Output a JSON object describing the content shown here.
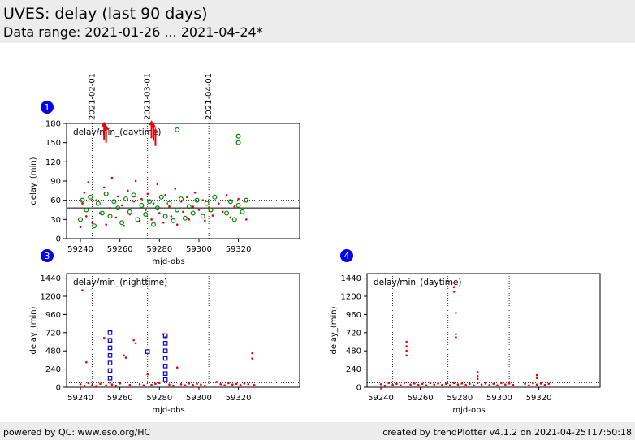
{
  "header": {
    "title": "UVES: delay (last 90 days)",
    "subtitle": "Data range: 2021-01-26 ... 2021-04-24*"
  },
  "footer": {
    "left": "powered by QC: www.eso.org/HC",
    "right": "created by trendPlotter v4.1.2 on 2021-04-25T17:50:18"
  },
  "colors": {
    "red": "#ee0000",
    "green": "#008800",
    "blue": "#0000ee",
    "badge": "#0000ee"
  },
  "chart_data": [
    {
      "id": 1,
      "badge": "1",
      "type": "scatter",
      "label": "delay/min_(daytime)",
      "xlabel": "mjd-obs",
      "ylabel": "delay_(min)",
      "xlim": [
        59233,
        59351
      ],
      "ylim": [
        0,
        180
      ],
      "xticks": [
        "59240",
        "59260",
        "59280",
        "59300",
        "59320"
      ],
      "yticks": [
        "0",
        "30",
        "60",
        "90",
        "120",
        "150",
        "180"
      ],
      "reference_lines": [
        {
          "type": "hline",
          "value": 48,
          "style": "solid"
        },
        {
          "type": "hline",
          "value": 60,
          "style": "dotted"
        }
      ],
      "date_markers": [
        {
          "label": "2021-02-01",
          "mjd": 59246
        },
        {
          "label": "2021-03-01",
          "mjd": 59274
        },
        {
          "label": "2021-04-01",
          "mjd": 59305
        }
      ],
      "series": [
        {
          "color": "red",
          "marker": "dot",
          "points": [
            [
              59240,
              18
            ],
            [
              59241,
              55
            ],
            [
              59242,
              72
            ],
            [
              59243,
              35
            ],
            [
              59244,
              88
            ],
            [
              59246,
              25
            ],
            [
              59248,
              60
            ],
            [
              59250,
              40
            ],
            [
              59252,
              80
            ],
            [
              59253,
              22
            ],
            [
              59255,
              48
            ],
            [
              59256,
              95
            ],
            [
              59258,
              33
            ],
            [
              59259,
              66
            ],
            [
              59261,
              52
            ],
            [
              59262,
              20
            ],
            [
              59264,
              75
            ],
            [
              59265,
              38
            ],
            [
              59267,
              58
            ],
            [
              59268,
              90
            ],
            [
              59270,
              28
            ],
            [
              59271,
              62
            ],
            [
              59273,
              45
            ],
            [
              59274,
              70
            ],
            [
              59276,
              30
            ],
            [
              59277,
              55
            ],
            [
              59279,
              85
            ],
            [
              59280,
              40
            ],
            [
              59282,
              25
            ],
            [
              59283,
              68
            ],
            [
              59285,
              50
            ],
            [
              59286,
              35
            ],
            [
              59288,
              78
            ],
            [
              59289,
              22
            ],
            [
              59291,
              58
            ],
            [
              59292,
              42
            ],
            [
              59294,
              65
            ],
            [
              59295,
              30
            ],
            [
              59297,
              50
            ],
            [
              59298,
              72
            ],
            [
              59300,
              45
            ],
            [
              59302,
              60
            ],
            [
              59303,
              28
            ],
            [
              59305,
              48
            ],
            [
              59307,
              36
            ],
            [
              59310,
              55
            ],
            [
              59312,
              42
            ],
            [
              59314,
              68
            ],
            [
              59316,
              33
            ],
            [
              59318,
              50
            ],
            [
              59320,
              62
            ],
            [
              59321,
              40
            ],
            [
              59323,
              58
            ],
            [
              59324,
              30
            ]
          ]
        },
        {
          "color": "red",
          "marker": "arrow",
          "points": [
            [
              59252,
              170
            ],
            [
              59253,
              165
            ],
            [
              59276,
              172
            ],
            [
              59277,
              168
            ],
            [
              59278,
              160
            ]
          ]
        },
        {
          "color": "green",
          "marker": "circle",
          "points": [
            [
              59240,
              30
            ],
            [
              59241,
              60
            ],
            [
              59243,
              45
            ],
            [
              59245,
              65
            ],
            [
              59247,
              20
            ],
            [
              59249,
              55
            ],
            [
              59251,
              40
            ],
            [
              59253,
              70
            ],
            [
              59255,
              35
            ],
            [
              59257,
              58
            ],
            [
              59259,
              48
            ],
            [
              59261,
              25
            ],
            [
              59263,
              62
            ],
            [
              59265,
              42
            ],
            [
              59267,
              68
            ],
            [
              59269,
              30
            ],
            [
              59271,
              52
            ],
            [
              59273,
              38
            ],
            [
              59275,
              58
            ],
            [
              59277,
              22
            ],
            [
              59279,
              48
            ],
            [
              59281,
              65
            ],
            [
              59283,
              35
            ],
            [
              59285,
              55
            ],
            [
              59287,
              28
            ],
            [
              59289,
              45
            ],
            [
              59291,
              62
            ],
            [
              59293,
              32
            ],
            [
              59295,
              50
            ],
            [
              59297,
              40
            ],
            [
              59299,
              60
            ],
            [
              59302,
              35
            ],
            [
              59304,
              55
            ],
            [
              59306,
              45
            ],
            [
              59308,
              65
            ],
            [
              59314,
              40
            ],
            [
              59316,
              58
            ],
            [
              59318,
              30
            ],
            [
              59320,
              52
            ],
            [
              59322,
              42
            ],
            [
              59324,
              60
            ],
            [
              59320,
              160
            ],
            [
              59320,
              150
            ],
            [
              59289,
              170
            ]
          ]
        }
      ]
    },
    {
      "id": 3,
      "badge": "3",
      "type": "scatter",
      "label": "delay/min_(nighttime)",
      "xlabel": "mjd-obs",
      "ylabel": "delay_(min)",
      "xlim": [
        59233,
        59351
      ],
      "ylim": [
        0,
        1500
      ],
      "xticks": [
        "59240",
        "59260",
        "59280",
        "59300",
        "59320"
      ],
      "yticks": [
        "0",
        "240",
        "480",
        "720",
        "960",
        "1200",
        "1440"
      ],
      "reference_lines": [
        {
          "type": "hline",
          "value": 1440,
          "style": "dotted"
        },
        {
          "type": "hline",
          "value": 60,
          "style": "dotted"
        }
      ],
      "date_markers": [
        {
          "label": "2021-02-01",
          "mjd": 59246
        },
        {
          "label": "2021-03-01",
          "mjd": 59274
        },
        {
          "label": "2021-04-01",
          "mjd": 59305
        }
      ],
      "series": [
        {
          "color": "red",
          "marker": "dot",
          "points": [
            [
              59241,
              1280
            ],
            [
              59243,
              330
            ],
            [
              59240,
              40
            ],
            [
              59242,
              20
            ],
            [
              59244,
              55
            ],
            [
              59246,
              30
            ],
            [
              59248,
              15
            ],
            [
              59250,
              45
            ],
            [
              59252,
              650
            ],
            [
              59253,
              25
            ],
            [
              59255,
              60
            ],
            [
              59256,
              35
            ],
            [
              59258,
              20
            ],
            [
              59260,
              50
            ],
            [
              59262,
              420
            ],
            [
              59263,
              390
            ],
            [
              59265,
              30
            ],
            [
              59267,
              620
            ],
            [
              59268,
              580
            ],
            [
              59270,
              40
            ],
            [
              59272,
              25
            ],
            [
              59274,
              170
            ],
            [
              59276,
              30
            ],
            [
              59278,
              45
            ],
            [
              59280,
              55
            ],
            [
              59282,
              700
            ],
            [
              59283,
              660
            ],
            [
              59285,
              35
            ],
            [
              59287,
              20
            ],
            [
              59289,
              260
            ],
            [
              59291,
              40
            ],
            [
              59293,
              25
            ],
            [
              59295,
              50
            ],
            [
              59297,
              30
            ],
            [
              59299,
              45
            ],
            [
              59301,
              35
            ],
            [
              59303,
              20
            ],
            [
              59309,
              70
            ],
            [
              59311,
              40
            ],
            [
              59313,
              25
            ],
            [
              59315,
              55
            ],
            [
              59317,
              35
            ],
            [
              59319,
              45
            ],
            [
              59321,
              30
            ],
            [
              59323,
              50
            ],
            [
              59325,
              40
            ],
            [
              59327,
              450
            ],
            [
              59327,
              380
            ],
            [
              59328,
              30
            ]
          ]
        },
        {
          "color": "blue",
          "marker": "square",
          "points": [
            [
              59255,
              720
            ],
            [
              59255,
              620
            ],
            [
              59255,
              520
            ],
            [
              59255,
              420
            ],
            [
              59255,
              320
            ],
            [
              59255,
              220
            ],
            [
              59255,
              120
            ],
            [
              59274,
              470
            ],
            [
              59283,
              680
            ],
            [
              59283,
              580
            ],
            [
              59283,
              480
            ],
            [
              59283,
              380
            ],
            [
              59283,
              280
            ],
            [
              59283,
              180
            ],
            [
              59283,
              100
            ]
          ]
        }
      ]
    },
    {
      "id": 4,
      "badge": "4",
      "type": "scatter",
      "label": "delay/min_(daytime)",
      "xlabel": "mjd-obs",
      "ylabel": "delay_(min)",
      "xlim": [
        59233,
        59351
      ],
      "ylim": [
        0,
        1500
      ],
      "xticks": [
        "59240",
        "59260",
        "59280",
        "59300",
        "59320"
      ],
      "yticks": [
        "0",
        "240",
        "480",
        "720",
        "960",
        "1200",
        "1440"
      ],
      "reference_lines": [
        {
          "type": "hline",
          "value": 1440,
          "style": "dotted"
        },
        {
          "type": "hline",
          "value": 60,
          "style": "dotted"
        }
      ],
      "date_markers": [
        {
          "label": "2021-02-01",
          "mjd": 59246
        },
        {
          "label": "2021-03-01",
          "mjd": 59274
        },
        {
          "label": "2021-04-01",
          "mjd": 59305
        }
      ],
      "series": [
        {
          "color": "red",
          "marker": "dot",
          "points": [
            [
              59253,
              600
            ],
            [
              59253,
              540
            ],
            [
              59253,
              480
            ],
            [
              59253,
              420
            ],
            [
              59277,
              1380
            ],
            [
              59277,
              1320
            ],
            [
              59277,
              1260
            ],
            [
              59278,
              980
            ],
            [
              59278,
              700
            ],
            [
              59278,
              660
            ],
            [
              59289,
              200
            ],
            [
              59289,
              150
            ],
            [
              59289,
              110
            ],
            [
              59319,
              160
            ],
            [
              59319,
              120
            ],
            [
              59240,
              40
            ],
            [
              59242,
              20
            ],
            [
              59244,
              55
            ],
            [
              59246,
              30
            ],
            [
              59248,
              45
            ],
            [
              59250,
              25
            ],
            [
              59252,
              60
            ],
            [
              59255,
              35
            ],
            [
              59257,
              50
            ],
            [
              59259,
              30
            ],
            [
              59261,
              45
            ],
            [
              59263,
              25
            ],
            [
              59265,
              55
            ],
            [
              59267,
              35
            ],
            [
              59269,
              50
            ],
            [
              59271,
              30
            ],
            [
              59273,
              45
            ],
            [
              59275,
              25
            ],
            [
              59277,
              55
            ],
            [
              59279,
              35
            ],
            [
              59281,
              50
            ],
            [
              59283,
              30
            ],
            [
              59285,
              45
            ],
            [
              59287,
              25
            ],
            [
              59289,
              55
            ],
            [
              59291,
              35
            ],
            [
              59293,
              50
            ],
            [
              59295,
              30
            ],
            [
              59297,
              45
            ],
            [
              59299,
              25
            ],
            [
              59301,
              55
            ],
            [
              59303,
              35
            ],
            [
              59305,
              50
            ],
            [
              59307,
              30
            ],
            [
              59313,
              45
            ],
            [
              59315,
              25
            ],
            [
              59317,
              55
            ],
            [
              59319,
              35
            ],
            [
              59321,
              50
            ],
            [
              59323,
              30
            ],
            [
              59325,
              45
            ]
          ]
        }
      ]
    }
  ]
}
